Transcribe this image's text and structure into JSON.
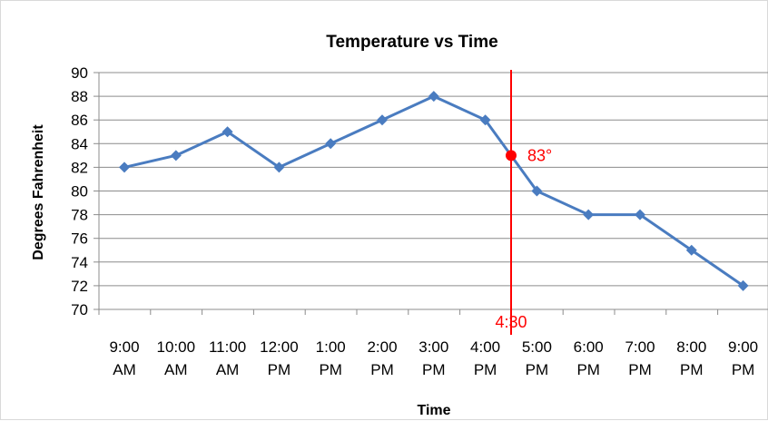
{
  "chart_data": {
    "type": "line",
    "title": "Temperature vs Time",
    "xlabel": "Time",
    "ylabel": "Degrees Fahrenheit",
    "categories": [
      [
        "9:00",
        "AM"
      ],
      [
        "10:00",
        "AM"
      ],
      [
        "11:00",
        "AM"
      ],
      [
        "12:00",
        "PM"
      ],
      [
        "1:00",
        "PM"
      ],
      [
        "2:00",
        "PM"
      ],
      [
        "3:00",
        "PM"
      ],
      [
        "4:00",
        "PM"
      ],
      [
        "5:00",
        "PM"
      ],
      [
        "6:00",
        "PM"
      ],
      [
        "7:00",
        "PM"
      ],
      [
        "8:00",
        "PM"
      ],
      [
        "9:00",
        "PM"
      ]
    ],
    "series": [
      {
        "values": [
          82,
          83,
          85,
          82,
          84,
          86,
          88,
          86,
          80,
          78,
          78,
          75,
          72
        ]
      }
    ],
    "ylim": [
      70,
      90
    ],
    "yticks": [
      70,
      72,
      74,
      76,
      78,
      80,
      82,
      84,
      86,
      88,
      90
    ],
    "grid": true,
    "line_color": "#4a7cc0",
    "annotation": {
      "x_label": "4:30",
      "x_position": 7.5,
      "y_value": 83,
      "point_label": "83°",
      "color": "#ff0000"
    }
  }
}
